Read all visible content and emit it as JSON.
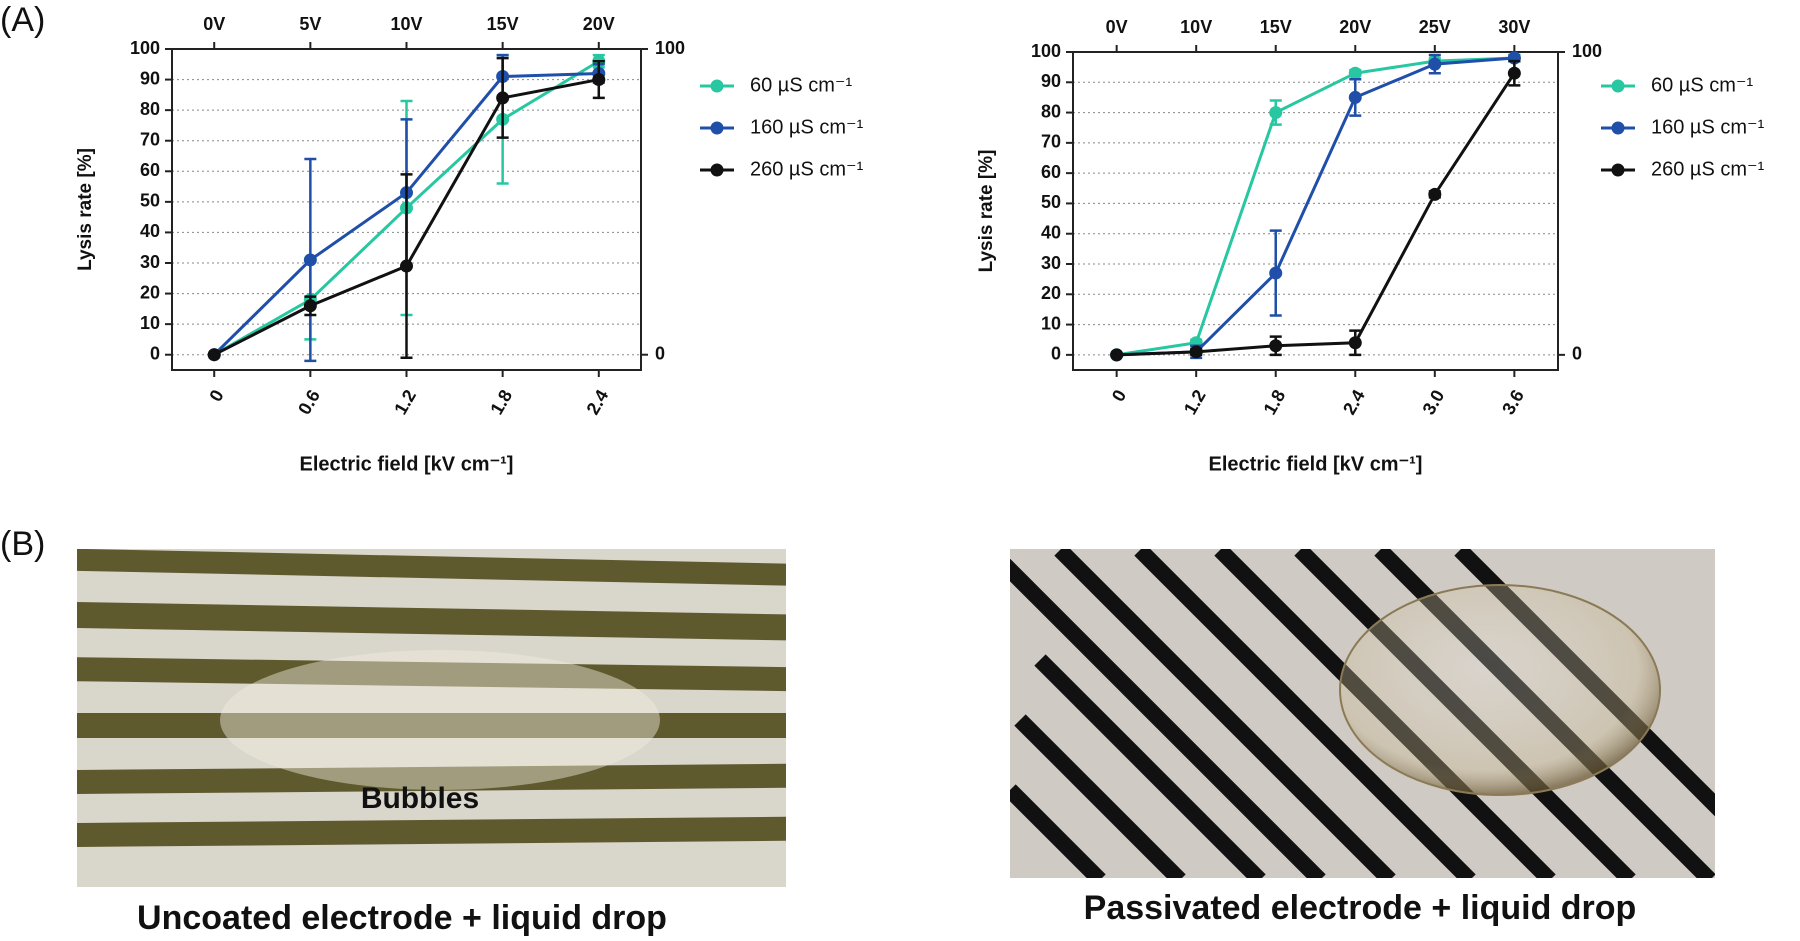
{
  "panel_labels": [
    "(A)",
    "(B)"
  ],
  "photos": [
    {
      "annotation": "Bubbles",
      "caption": "Uncoated electrode + liquid drop"
    },
    {
      "caption": "Passivated electrode + liquid drop"
    }
  ],
  "chart_data": [
    {
      "type": "line",
      "x_label": "Electric field [kV cm⁻¹]",
      "y_label": "Lysis rate [%]",
      "categories": [
        "0",
        "0.6",
        "1.2",
        "1.8",
        "2.4"
      ],
      "top_categories": [
        "0V",
        "5V",
        "10V",
        "15V",
        "20V"
      ],
      "ylim": [
        -5,
        100
      ],
      "yticks": [
        0,
        10,
        20,
        30,
        40,
        50,
        60,
        70,
        80,
        90,
        100
      ],
      "y2lim": [
        -5,
        100
      ],
      "y2ticks": [
        0,
        100
      ],
      "grid": true,
      "series": [
        {
          "name": "60 µS cm⁻¹",
          "color": "#27c7a2",
          "values": [
            0,
            18,
            48,
            77,
            96
          ],
          "errors": [
            0,
            13,
            35,
            21,
            2
          ]
        },
        {
          "name": "160 µS cm⁻¹",
          "color": "#1f4fa8",
          "values": [
            0,
            31,
            53,
            91,
            92
          ],
          "errors": [
            0,
            33,
            24,
            7,
            3
          ]
        },
        {
          "name": "260 µS cm⁻¹",
          "color": "#111111",
          "values": [
            0,
            16,
            29,
            84,
            90
          ],
          "errors": [
            0,
            3,
            30,
            13,
            6
          ]
        }
      ]
    },
    {
      "type": "line",
      "x_label": "Electric field [kV cm⁻¹]",
      "y_label": "Lysis rate [%]",
      "categories": [
        "0",
        "1.2",
        "1.8",
        "2.4",
        "3.0",
        "3.6"
      ],
      "top_categories": [
        "0V",
        "10V",
        "15V",
        "20V",
        "25V",
        "30V"
      ],
      "ylim": [
        -5,
        100
      ],
      "yticks": [
        0,
        10,
        20,
        30,
        40,
        50,
        60,
        70,
        80,
        90,
        100
      ],
      "y2lim": [
        -5,
        100
      ],
      "y2ticks": [
        0,
        100
      ],
      "grid": true,
      "series": [
        {
          "name": "60 µS cm⁻¹",
          "color": "#27c7a2",
          "values": [
            0,
            4,
            80,
            93,
            97,
            98
          ],
          "errors": [
            0,
            1,
            4,
            1,
            1,
            1
          ]
        },
        {
          "name": "160 µS cm⁻¹",
          "color": "#1f4fa8",
          "values": [
            0,
            1,
            27,
            85,
            96,
            98
          ],
          "errors": [
            0,
            2,
            14,
            6,
            3,
            1
          ]
        },
        {
          "name": "260 µS cm⁻¹",
          "color": "#111111",
          "values": [
            0,
            1,
            3,
            4,
            53,
            93
          ],
          "errors": [
            0,
            1,
            3,
            4,
            1,
            4
          ]
        }
      ]
    }
  ]
}
